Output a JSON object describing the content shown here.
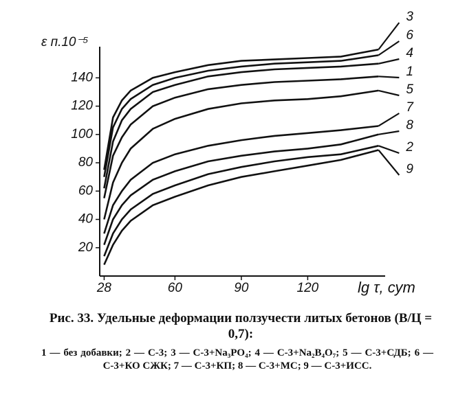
{
  "chart_data": {
    "type": "line",
    "caption": "Рис. 33. Удельные деформации ползучести литых бетонов (В/Ц = 0,7):",
    "legend_text": "1 — без добавки; 2 — С-3; 3 — С-3+Na₃PO₄; 4 — С-3+Na₂B₄O₇; 5 — С-3+СДБ; 6 — С-3+КО СЖК; 7 — С-3+КП; 8 — С-3+МС; 9 — С-3+ИСС.",
    "y_label": "ε п.10⁻⁵",
    "x_label": "lg τ, сут",
    "xlim": [
      26,
      155
    ],
    "xticks": [
      28,
      60,
      90,
      120
    ],
    "ylim": [
      0,
      162
    ],
    "yticks": [
      20,
      40,
      60,
      80,
      100,
      120,
      140
    ],
    "x": [
      28,
      32,
      36,
      40,
      50,
      60,
      75,
      90,
      105,
      120,
      135,
      152
    ],
    "series": [
      {
        "name": "1",
        "color": "#111111",
        "values": [
          55,
          85,
          98,
          107,
          120,
          126,
          132,
          135,
          137,
          138,
          139,
          141
        ]
      },
      {
        "name": "2",
        "color": "#111111",
        "values": [
          14,
          30,
          40,
          47,
          58,
          64,
          72,
          77,
          81,
          84,
          86,
          92
        ]
      },
      {
        "name": "3",
        "color": "#111111",
        "values": [
          75,
          112,
          124,
          131,
          140,
          144,
          149,
          152,
          153,
          154,
          155,
          160
        ]
      },
      {
        "name": "4",
        "color": "#111111",
        "values": [
          62,
          95,
          110,
          118,
          130,
          135,
          141,
          144,
          146,
          147,
          148,
          150
        ]
      },
      {
        "name": "5",
        "color": "#111111",
        "values": [
          40,
          66,
          80,
          90,
          104,
          111,
          118,
          122,
          124,
          125,
          127,
          131
        ]
      },
      {
        "name": "6",
        "color": "#111111",
        "values": [
          70,
          105,
          118,
          125,
          135,
          140,
          145,
          148,
          150,
          151,
          152,
          156
        ]
      },
      {
        "name": "7",
        "color": "#111111",
        "values": [
          30,
          50,
          60,
          68,
          80,
          86,
          92,
          96,
          99,
          101,
          103,
          106
        ]
      },
      {
        "name": "8",
        "color": "#111111",
        "values": [
          22,
          40,
          50,
          57,
          68,
          74,
          81,
          85,
          88,
          90,
          93,
          100
        ]
      },
      {
        "name": "9",
        "color": "#111111",
        "values": [
          8,
          22,
          32,
          39,
          50,
          56,
          64,
          70,
          74,
          78,
          82,
          89
        ]
      }
    ]
  }
}
